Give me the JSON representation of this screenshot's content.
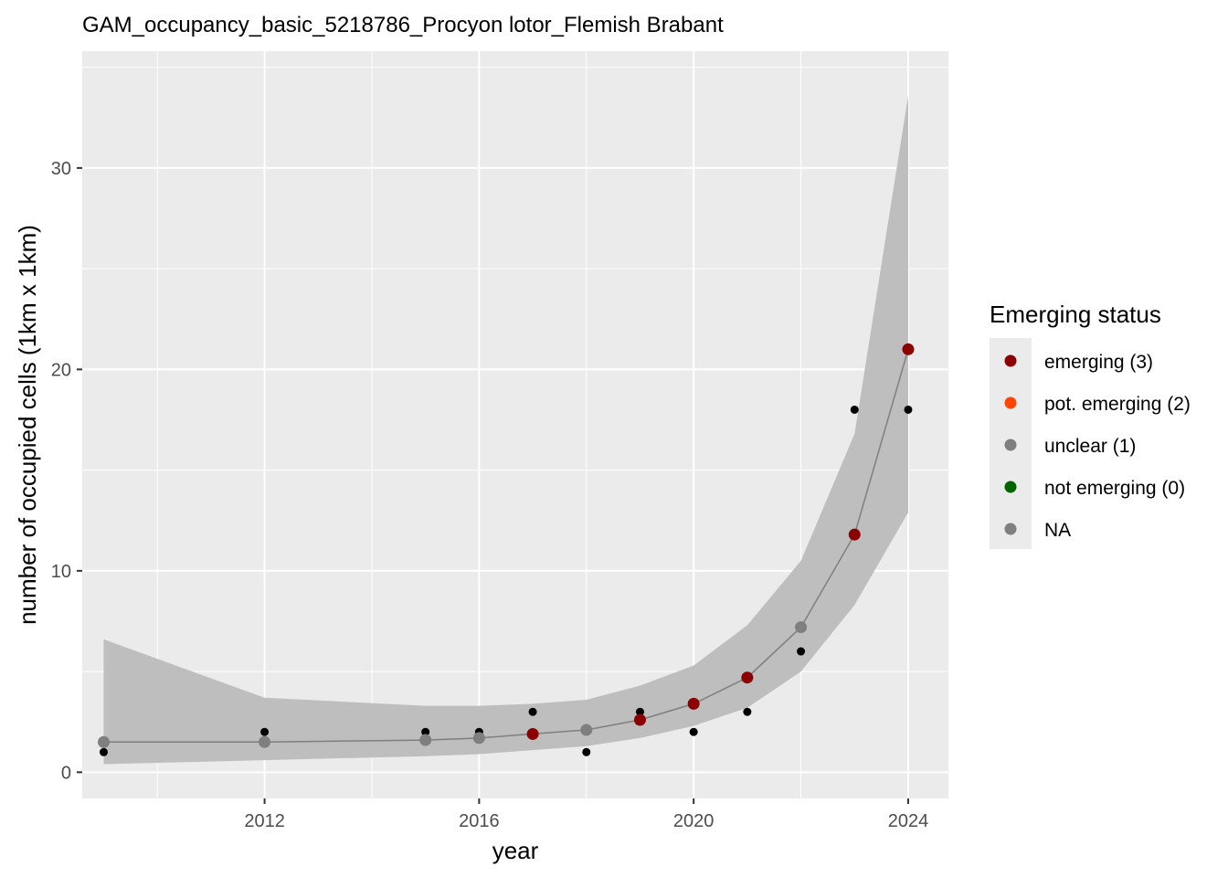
{
  "chart_data": {
    "type": "line",
    "title": "GAM_occupancy_basic_5218786_Procyon lotor_Flemish Brabant",
    "xlabel": "year",
    "ylabel": "number of occupied cells (1km x 1km)",
    "xlim": [
      2008.6,
      2024.75
    ],
    "ylim": [
      -1.3,
      35.8
    ],
    "x_ticks": [
      2012,
      2016,
      2020,
      2024
    ],
    "y_ticks": [
      0,
      10,
      20,
      30
    ],
    "grid": true,
    "legend": {
      "title": "Emerging status",
      "placement": "right",
      "items": [
        {
          "label": "emerging (3)",
          "color": "#8b0000"
        },
        {
          "label": "pot. emerging (2)",
          "color": "#ff4500"
        },
        {
          "label": "unclear (1)",
          "color": "#7f7f7f"
        },
        {
          "label": "not emerging (0)",
          "color": "#006400"
        },
        {
          "label": "NA",
          "color": "#7f7f7f"
        }
      ]
    },
    "observed": {
      "x": [
        2009,
        2012,
        2015,
        2016,
        2017,
        2018,
        2019,
        2020,
        2021,
        2022,
        2023,
        2024
      ],
      "y": [
        1,
        2,
        2,
        2,
        3,
        1,
        3,
        2,
        3,
        6,
        18,
        18
      ]
    },
    "fit": {
      "x": [
        2009,
        2012,
        2015,
        2016,
        2017,
        2018,
        2019,
        2020,
        2021,
        2022,
        2023,
        2024
      ],
      "y": [
        1.5,
        1.5,
        1.6,
        1.7,
        1.9,
        2.1,
        2.6,
        3.4,
        4.7,
        7.2,
        11.8,
        21.0
      ],
      "lower": [
        0.4,
        0.6,
        0.8,
        0.9,
        1.1,
        1.3,
        1.7,
        2.3,
        3.2,
        5.0,
        8.3,
        12.9
      ],
      "upper": [
        6.6,
        3.7,
        3.3,
        3.3,
        3.4,
        3.6,
        4.3,
        5.3,
        7.3,
        10.5,
        16.8,
        33.6
      ],
      "status": [
        "unclear (1)",
        "unclear (1)",
        "unclear (1)",
        "unclear (1)",
        "emerging (3)",
        "unclear (1)",
        "emerging (3)",
        "emerging (3)",
        "emerging (3)",
        "unclear (1)",
        "emerging (3)",
        "emerging (3)"
      ]
    },
    "colors": {
      "panel_background": "#ebebeb",
      "grid_major": "#ffffff",
      "ribbon": "#bebebe",
      "fit_line": "#7f7f7f",
      "observed_point": "#000000"
    }
  }
}
